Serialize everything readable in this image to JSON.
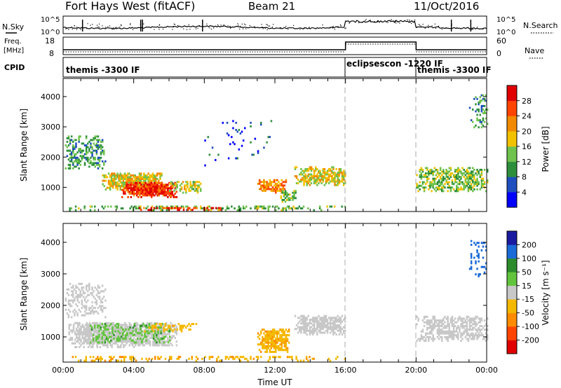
{
  "header": {
    "station": "Fort Hays West (fitACF)",
    "beam": "Beam 21",
    "date": "11/Oct/2016"
  },
  "noise_panel": {
    "left_label": "N.Sky",
    "right_label": "N.Search",
    "left_ticks": [
      "10^5",
      "10^0"
    ],
    "right_ticks": [
      "10^5",
      "10^0"
    ]
  },
  "freq_panel": {
    "left_label_1": "Freq.",
    "left_label_2": "[MHz]",
    "right_label": "Nave",
    "left_ticks": [
      "18",
      "8"
    ],
    "right_ticks": [
      "60",
      "0"
    ]
  },
  "cpid": {
    "label": "CPID",
    "segments": [
      {
        "name": "themis -3300 IF",
        "start_h": 0,
        "end_h": 16
      },
      {
        "name": "eclipsescon -1220 IF",
        "start_h": 16,
        "end_h": 20
      },
      {
        "name": "themis -3300 IF",
        "start_h": 20,
        "end_h": 24
      }
    ]
  },
  "colors": {
    "power": [
      "#0000ff",
      "#1f4fbf",
      "#2d8f3c",
      "#6fc24d",
      "#f2c100",
      "#f28a00",
      "#ff4400",
      "#e00000"
    ],
    "velocity": [
      "#e00000",
      "#ff4400",
      "#ff8c00",
      "#f5b800",
      "#c8c8c8",
      "#62c43c",
      "#2c8c2c",
      "#1a6ad8",
      "#1a1aa0"
    ]
  },
  "chart_data": [
    {
      "type": "heatmap",
      "name": "power",
      "ylabel": "Slant Range [km]",
      "xlabel": "",
      "ylim": [
        200,
        4600
      ],
      "xlim_hours": [
        0,
        24
      ],
      "y_ticks": [
        "1000",
        "2000",
        "3000",
        "4000"
      ],
      "colorbar": {
        "label": "Power [dB]",
        "ticks": [
          "4",
          "8",
          "12",
          "16",
          "20",
          "24",
          "28"
        ],
        "range": [
          0,
          32
        ]
      },
      "regions": [
        {
          "t0": 0.1,
          "t1": 2.4,
          "r0": 1600,
          "r1": 2700,
          "value": 11,
          "density": 0.45
        },
        {
          "t0": 2.2,
          "t1": 5.6,
          "r0": 900,
          "r1": 1450,
          "value": 18,
          "density": 0.85
        },
        {
          "t0": 3.3,
          "t1": 6.4,
          "r0": 650,
          "r1": 1150,
          "value": 27,
          "density": 0.95
        },
        {
          "t0": 6.0,
          "t1": 7.8,
          "r0": 800,
          "r1": 1200,
          "value": 16,
          "density": 0.6
        },
        {
          "t0": 11.0,
          "t1": 12.6,
          "r0": 800,
          "r1": 1250,
          "value": 22,
          "density": 0.75
        },
        {
          "t0": 12.3,
          "t1": 13.2,
          "r0": 500,
          "r1": 900,
          "value": 14,
          "density": 0.6
        },
        {
          "t0": 13.1,
          "t1": 16.0,
          "r0": 1050,
          "r1": 1650,
          "value": 17,
          "density": 0.7
        },
        {
          "t0": 0.0,
          "t1": 16.0,
          "r0": 220,
          "r1": 380,
          "value": 13,
          "density": 0.35
        },
        {
          "t0": 4.2,
          "t1": 9.0,
          "r0": 230,
          "r1": 330,
          "value": 27,
          "density": 0.6
        },
        {
          "t0": 20.0,
          "t1": 24.0,
          "r0": 850,
          "r1": 1650,
          "value": 14,
          "density": 0.6
        },
        {
          "t0": 23.0,
          "t1": 24.0,
          "r0": 2900,
          "r1": 4100,
          "value": 10,
          "density": 0.25
        },
        {
          "t0": 8.0,
          "t1": 12.0,
          "r0": 1700,
          "r1": 3300,
          "value": 6,
          "density": 0.05
        }
      ]
    },
    {
      "type": "heatmap",
      "name": "velocity",
      "ylabel": "Slant Range [km]",
      "xlabel": "Time UT",
      "ylim": [
        200,
        4600
      ],
      "xlim_hours": [
        0,
        24
      ],
      "x_ticks": [
        "00:00",
        "04:00",
        "08:00",
        "12:00",
        "16:00",
        "20:00",
        "00:00"
      ],
      "y_ticks": [
        "1000",
        "2000",
        "3000",
        "4000"
      ],
      "colorbar": {
        "label": "Velocity [m s⁻¹]",
        "ticks": [
          "-200",
          "-100",
          "-50",
          "-15",
          "15",
          "50",
          "100",
          "200"
        ],
        "range": [
          -250,
          250
        ]
      },
      "regions": [
        {
          "t0": 0.1,
          "t1": 2.4,
          "r0": 1600,
          "r1": 2700,
          "value": 0,
          "density": 0.45
        },
        {
          "t0": 0.3,
          "t1": 6.4,
          "r0": 650,
          "r1": 1450,
          "value": 0,
          "density": 0.85
        },
        {
          "t0": 1.5,
          "t1": 6.0,
          "r0": 800,
          "r1": 1400,
          "value": 40,
          "density": 0.35
        },
        {
          "t0": 4.5,
          "t1": 7.5,
          "r0": 1150,
          "r1": 1400,
          "value": -40,
          "density": 0.35
        },
        {
          "t0": 11.0,
          "t1": 12.8,
          "r0": 500,
          "r1": 1250,
          "value": -40,
          "density": 0.8
        },
        {
          "t0": 13.1,
          "t1": 16.0,
          "r0": 1050,
          "r1": 1650,
          "value": 0,
          "density": 0.75
        },
        {
          "t0": 0.0,
          "t1": 16.0,
          "r0": 220,
          "r1": 380,
          "value": -40,
          "density": 0.35
        },
        {
          "t0": 20.0,
          "t1": 24.0,
          "r0": 850,
          "r1": 1650,
          "value": 0,
          "density": 0.65
        },
        {
          "t0": 23.0,
          "t1": 24.0,
          "r0": 2900,
          "r1": 4100,
          "value": 120,
          "density": 0.2
        }
      ]
    }
  ]
}
